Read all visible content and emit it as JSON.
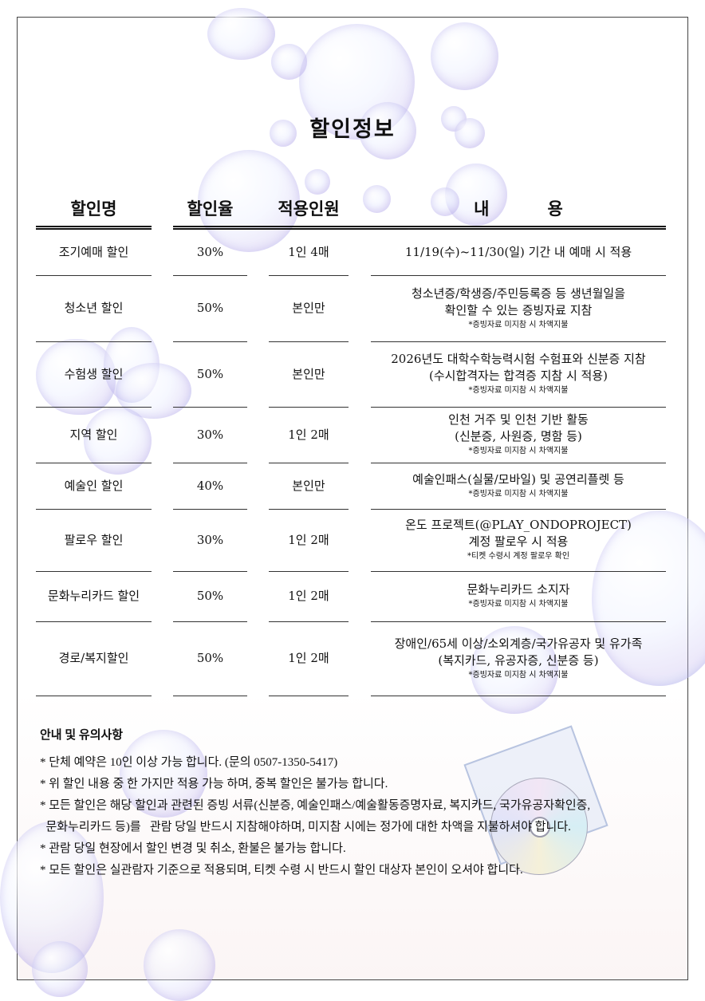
{
  "title": "할인정보",
  "headers": [
    "할인명",
    "할인율",
    "적용인원",
    "내          용"
  ],
  "rows": [
    {
      "name": "조기예매 할인",
      "rate": "30%",
      "people": "1인 4매",
      "content": [
        "11/19(수)~11/30(일) 기간 내 예매 시 적용"
      ],
      "note": ""
    },
    {
      "name": "청소년 할인",
      "rate": "50%",
      "people": "본인만",
      "content": [
        "청소년증/학생증/주민등록증 등 생년월일을",
        "확인할 수 있는 증빙자료 지참"
      ],
      "note": "*증빙자료 미지참 시 차액지불"
    },
    {
      "name": "수험생 할인",
      "rate": "50%",
      "people": "본인만",
      "content": [
        "2026년도 대학수학능력시험 수험표와 신분증 지참",
        "(수시합격자는 합격증 지참 시 적용)"
      ],
      "note": "*증빙자료 미지참 시 차액지불"
    },
    {
      "name": "지역 할인",
      "rate": "30%",
      "people": "1인 2매",
      "content": [
        "인천 거주 및 인천 기반 활동",
        "(신분증, 사원증, 명함 등)"
      ],
      "note": "*증빙자료 미지참 시 차액지불"
    },
    {
      "name": "예술인 할인",
      "rate": "40%",
      "people": "본인만",
      "content": [
        "예술인패스(실물/모바일) 및 공연리플렛 등"
      ],
      "note": "*증빙자료 미지참 시 차액지불"
    },
    {
      "name": "팔로우 할인",
      "rate": "30%",
      "people": "1인 2매",
      "content": [
        "온도 프로젝트(@PLAY_ONDOPROJECT)",
        "계정 팔로우 시 적용"
      ],
      "note": "*티켓 수령시 계정 팔로우 확인"
    },
    {
      "name": "문화누리카드 할인",
      "rate": "50%",
      "people": "1인 2매",
      "content": [
        "문화누리카드 소지자"
      ],
      "note": "*증빙자료 미지참 시 차액지불"
    },
    {
      "name": "경로/복지할인",
      "rate": "50%",
      "people": "1인 2매",
      "content": [
        "장애인/65세 이상/소외계층/국가유공자 및 유가족",
        "(복지카드, 유공자증, 신분증 등)"
      ],
      "note": "*증빙자료 미지참 시 차액지불"
    }
  ],
  "notice": {
    "heading": "안내 및 유의사항",
    "lines": [
      "* 단체 예약은 10인 이상 가능 합니다. (문의 0507-1350-5417)",
      "* 위 할인 내용 중 한 가지만 적용 가능 하며, 중복 할인은 불가능 합니다.",
      "* 모든 할인은 해당 할인과 관련된 증빙 서류(신분증, 예술인패스/예술활동증명자료, 복지카드, 국가유공자확인증,",
      "  문화누리카드 등)를   관람 당일 반드시 지참해야하며, 미지참 시에는 정가에 대한 차액을 지불하셔야 합니다.",
      "* 관람 당일 현장에서 할인 변경 및 취소, 환불은 불가능 합니다.",
      "* 모든 할인은 실관람자 기준으로 적용되며, 티켓 수령 시 반드시 할인 대상자 본인이 오셔야 합니다."
    ]
  }
}
